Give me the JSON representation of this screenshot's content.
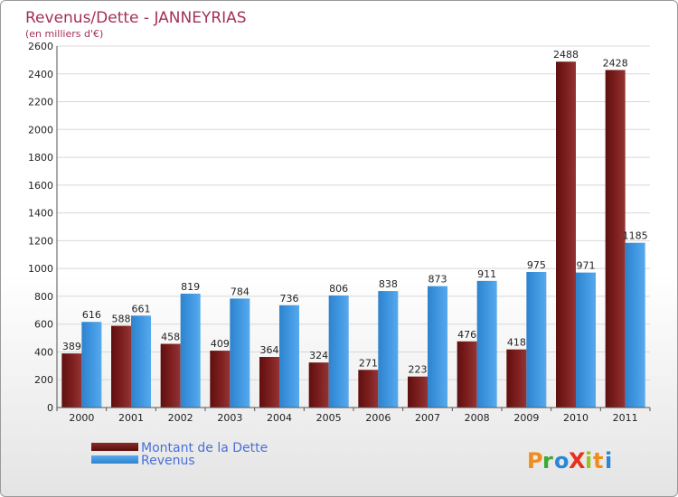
{
  "chart_data": {
    "type": "bar",
    "title": "Revenus/Dette - JANNEYRIAS",
    "subtitle": "(en milliers d'€)",
    "categories": [
      "2000",
      "2001",
      "2002",
      "2003",
      "2004",
      "2005",
      "2006",
      "2007",
      "2008",
      "2009",
      "2010",
      "2011"
    ],
    "series": [
      {
        "name": "Montant de la Dette",
        "color": "#7a1c1c",
        "values": [
          389,
          588,
          458,
          409,
          364,
          324,
          271,
          223,
          476,
          418,
          2488,
          2428
        ]
      },
      {
        "name": "Revenus",
        "color": "#3d95df",
        "values": [
          616,
          661,
          819,
          784,
          736,
          806,
          838,
          873,
          911,
          975,
          971,
          1185
        ]
      }
    ],
    "ylim": [
      0,
      2600
    ],
    "yticks": [
      0,
      200,
      400,
      600,
      800,
      1000,
      1200,
      1400,
      1600,
      1800,
      2000,
      2200,
      2400,
      2600
    ],
    "grid": true,
    "legend_position": "bottom-left"
  },
  "brand": {
    "logo_text": "Proxiti"
  }
}
